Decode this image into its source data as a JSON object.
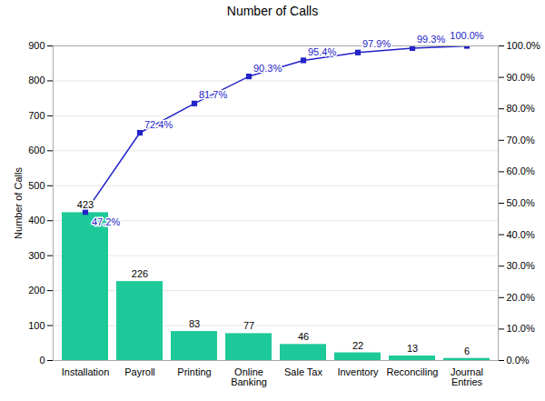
{
  "chart_data": {
    "type": "bar",
    "title": "Number of Calls",
    "categories": [
      "Installation",
      "Payroll",
      "Printing",
      "Online\nBanking",
      "Sale Tax",
      "Inventory",
      "Reconciling",
      "Journal\nEntries"
    ],
    "ylabel": "Number of Calls",
    "ylim": [
      0,
      900
    ],
    "yticks": [
      0,
      100,
      200,
      300,
      400,
      500,
      600,
      700,
      800,
      900
    ],
    "y2lim": [
      0,
      100
    ],
    "y2ticks": [
      {
        "value": 0,
        "label": "0.0%"
      },
      {
        "value": 10,
        "label": "10.0%"
      },
      {
        "value": 20,
        "label": "20.0%"
      },
      {
        "value": 30,
        "label": "30.0%"
      },
      {
        "value": 40,
        "label": "40.0%"
      },
      {
        "value": 50,
        "label": "50.0%"
      },
      {
        "value": 60,
        "label": "60.0%"
      },
      {
        "value": 70,
        "label": "70.0%"
      },
      {
        "value": 80,
        "label": "80.0%"
      },
      {
        "value": 90,
        "label": "90.0%"
      },
      {
        "value": 100,
        "label": "100.0%"
      }
    ],
    "grid": true,
    "data_labels": true,
    "series": [
      {
        "type": "bar",
        "color": "#1DC998",
        "values": [
          423,
          226,
          83,
          77,
          46,
          22,
          13,
          6
        ]
      },
      {
        "type": "line",
        "axis": "y2",
        "color": "#2323C8",
        "marker": "square",
        "values": [
          47.2,
          72.4,
          81.7,
          90.3,
          95.4,
          97.9,
          99.3,
          100.0
        ],
        "value_labels": [
          "47.2%",
          "72.4%",
          "81.7%",
          "90.3%",
          "95.4%",
          "97.9%",
          "99.3%",
          "100.0%"
        ]
      }
    ]
  }
}
